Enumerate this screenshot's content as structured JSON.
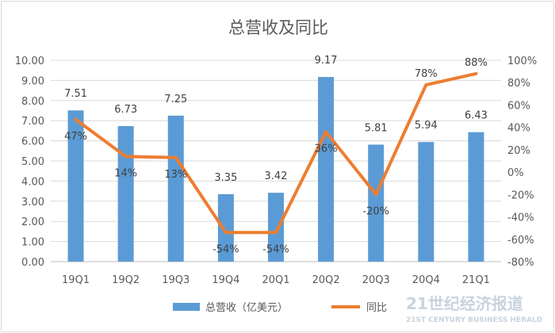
{
  "chart_data": {
    "type": "bar",
    "title": "总营收及同比",
    "categories": [
      "19Q1",
      "19Q2",
      "19Q3",
      "19Q4",
      "20Q1",
      "20Q2",
      "20Q3",
      "20Q4",
      "21Q1"
    ],
    "series": [
      {
        "name": "总营收（亿美元）",
        "type": "bar",
        "axis": "left",
        "color": "#5b9bd5",
        "values": [
          7.51,
          6.73,
          7.25,
          3.35,
          3.42,
          9.17,
          5.81,
          5.94,
          6.43
        ],
        "labels": [
          "7.51",
          "6.73",
          "7.25",
          "3.35",
          "3.42",
          "9.17",
          "5.81",
          "5.94",
          "6.43"
        ]
      },
      {
        "name": "同比",
        "type": "line",
        "axis": "right",
        "color": "#ed7d31",
        "values": [
          47,
          14,
          13,
          -54,
          -54,
          36,
          -20,
          78,
          88
        ],
        "labels": [
          "47%",
          "14%",
          "13%",
          "-54%",
          "-54%",
          "36%",
          "-20%",
          "78%",
          "88%"
        ]
      }
    ],
    "left_axis": {
      "ylim": [
        0,
        10
      ],
      "ticks": [
        "0.00",
        "1.00",
        "2.00",
        "3.00",
        "4.00",
        "5.00",
        "6.00",
        "7.00",
        "8.00",
        "9.00",
        "10.00"
      ]
    },
    "right_axis": {
      "ylim": [
        -80,
        100
      ],
      "ticks": [
        "-80%",
        "-60%",
        "-40%",
        "-20%",
        "0%",
        "20%",
        "40%",
        "60%",
        "80%",
        "100%"
      ]
    },
    "grid": true,
    "legend_position": "bottom"
  },
  "watermark": {
    "main": "21世纪经济报道",
    "sub": "21ST CENTURY BUSINESS HERALD"
  }
}
